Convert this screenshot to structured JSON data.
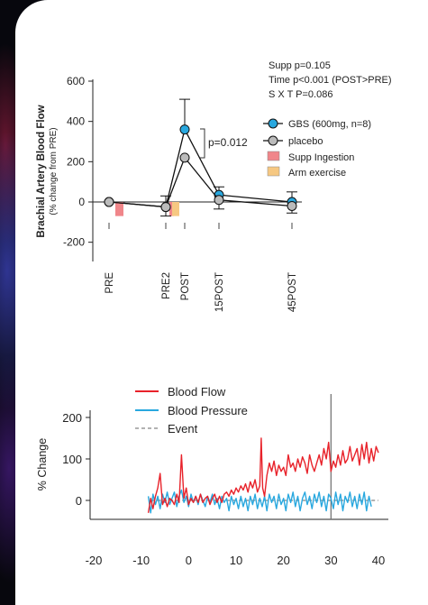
{
  "chart_data": [
    {
      "type": "line",
      "ylabel": "Brachial Artery Blood Flow",
      "ylabel_sub": "(% change from PRE)",
      "categories": [
        "PRE",
        "PRE2",
        "POST",
        "15POST",
        "45POST"
      ],
      "yticks": [
        "600",
        "400",
        "200",
        "0",
        "-200"
      ],
      "ylim": [
        -200,
        600
      ],
      "series": [
        {
          "name": "GBS (600mg, n=8)",
          "color": "#29a8df",
          "values": [
            0,
            -25,
            360,
            35,
            0
          ],
          "err": [
            0,
            55,
            150,
            40,
            50
          ]
        },
        {
          "name": "placebo",
          "color": "#bbbbbb",
          "values": [
            0,
            -25,
            220,
            10,
            -20
          ],
          "err": [
            0,
            45,
            0,
            45,
            35
          ]
        }
      ],
      "bars": [
        {
          "name": "Supp Ingestion",
          "color": "#f0868a",
          "value": -70
        },
        {
          "name": "Arm exercise",
          "color": "#f6c882",
          "value": -70
        }
      ],
      "stats": [
        "Supp p=0.105",
        "Time p<0.001 (POST>PRE)",
        "S X T P=0.086"
      ],
      "annotation": "p=0.012"
    },
    {
      "type": "line",
      "ylabel": "% Change",
      "xticks": [
        "-20",
        "-10",
        "0",
        "10",
        "20",
        "30",
        "40"
      ],
      "yticks": [
        "200",
        "100",
        "0"
      ],
      "xlim": [
        -20,
        40
      ],
      "ylim": [
        -40,
        220
      ],
      "event_x": 30,
      "series": [
        {
          "name": "Blood Flow",
          "color": "#e8222a",
          "points": [
            [
              -8.5,
              -30
            ],
            [
              -8,
              5
            ],
            [
              -7.5,
              -20
            ],
            [
              -7,
              10
            ],
            [
              -6.5,
              30
            ],
            [
              -6,
              65
            ],
            [
              -5.5,
              -10
            ],
            [
              -5,
              5
            ],
            [
              -4.5,
              -15
            ],
            [
              -4,
              5
            ],
            [
              -3.5,
              0
            ],
            [
              -3,
              -10
            ],
            [
              -2.5,
              15
            ],
            [
              -2,
              -5
            ],
            [
              -1.5,
              110
            ],
            [
              -1,
              5
            ],
            [
              -0.5,
              30
            ],
            [
              0,
              -10
            ],
            [
              0.5,
              5
            ],
            [
              1,
              -5
            ],
            [
              1.5,
              10
            ],
            [
              2,
              -5
            ],
            [
              2.5,
              15
            ],
            [
              3,
              -5
            ],
            [
              3.5,
              5
            ],
            [
              4,
              10
            ],
            [
              4.5,
              -10
            ],
            [
              5,
              5
            ],
            [
              5.5,
              15
            ],
            [
              6,
              -5
            ],
            [
              6.5,
              10
            ],
            [
              7,
              -5
            ],
            [
              7.5,
              15
            ],
            [
              8,
              20
            ],
            [
              8.5,
              10
            ],
            [
              9,
              25
            ],
            [
              9.5,
              15
            ],
            [
              10,
              30
            ],
            [
              10.5,
              20
            ],
            [
              11,
              35
            ],
            [
              11.5,
              25
            ],
            [
              12,
              40
            ],
            [
              12.5,
              20
            ],
            [
              13,
              45
            ],
            [
              13.5,
              30
            ],
            [
              14,
              50
            ],
            [
              14.5,
              20
            ],
            [
              15,
              35
            ],
            [
              15.3,
              150
            ],
            [
              15.6,
              30
            ],
            [
              16,
              10
            ],
            [
              16.5,
              60
            ],
            [
              17,
              90
            ],
            [
              17.5,
              70
            ],
            [
              18,
              95
            ],
            [
              18.5,
              60
            ],
            [
              19,
              85
            ],
            [
              19.5,
              70
            ],
            [
              20,
              80
            ],
            [
              20.5,
              60
            ],
            [
              21,
              110
            ],
            [
              21.5,
              80
            ],
            [
              22,
              90
            ],
            [
              22.5,
              70
            ],
            [
              23,
              100
            ],
            [
              23.5,
              80
            ],
            [
              24,
              105
            ],
            [
              24.5,
              90
            ],
            [
              25,
              65
            ],
            [
              25.5,
              110
            ],
            [
              26,
              85
            ],
            [
              26.5,
              70
            ],
            [
              27,
              90
            ],
            [
              27.5,
              110
            ],
            [
              28,
              85
            ],
            [
              28.5,
              125
            ],
            [
              29,
              100
            ],
            [
              29.5,
              140
            ],
            [
              30,
              70
            ],
            [
              30.5,
              95
            ],
            [
              31,
              80
            ],
            [
              31.5,
              110
            ],
            [
              32,
              85
            ],
            [
              32.5,
              120
            ],
            [
              33,
              90
            ],
            [
              33.5,
              100
            ],
            [
              34,
              130
            ],
            [
              34.5,
              95
            ],
            [
              35,
              110
            ],
            [
              35.5,
              125
            ],
            [
              36,
              85
            ],
            [
              36.5,
              135
            ],
            [
              37,
              100
            ],
            [
              37.5,
              140
            ],
            [
              38,
              90
            ],
            [
              38.5,
              125
            ],
            [
              39,
              95
            ],
            [
              39.5,
              130
            ],
            [
              40,
              115
            ]
          ]
        },
        {
          "name": "Blood Pressure",
          "color": "#29a8df",
          "points": [
            [
              -8.5,
              10
            ],
            [
              -8,
              -30
            ],
            [
              -7.5,
              15
            ],
            [
              -7,
              -10
            ],
            [
              -6.5,
              10
            ],
            [
              -6,
              -20
            ],
            [
              -5.5,
              15
            ],
            [
              -5,
              -5
            ],
            [
              -4.5,
              20
            ],
            [
              -4,
              -10
            ],
            [
              -3.5,
              5
            ],
            [
              -3,
              20
            ],
            [
              -2.5,
              -15
            ],
            [
              -2,
              10
            ],
            [
              -1.5,
              25
            ],
            [
              -1,
              -5
            ],
            [
              -0.5,
              10
            ],
            [
              0,
              -15
            ],
            [
              0.5,
              15
            ],
            [
              1,
              -5
            ],
            [
              1.5,
              10
            ],
            [
              2,
              -10
            ],
            [
              2.5,
              15
            ],
            [
              3,
              0
            ],
            [
              3.5,
              -15
            ],
            [
              4,
              10
            ],
            [
              4.5,
              -5
            ],
            [
              5,
              15
            ],
            [
              5.5,
              -10
            ],
            [
              6,
              5
            ],
            [
              6.5,
              -20
            ],
            [
              7,
              10
            ],
            [
              7.5,
              -5
            ],
            [
              8,
              5
            ],
            [
              8.5,
              -25
            ],
            [
              9,
              10
            ],
            [
              9.5,
              -10
            ],
            [
              10,
              5
            ],
            [
              10.5,
              -20
            ],
            [
              11,
              10
            ],
            [
              11.5,
              -15
            ],
            [
              12,
              5
            ],
            [
              12.5,
              -25
            ],
            [
              13,
              10
            ],
            [
              13.5,
              -10
            ],
            [
              14,
              15
            ],
            [
              14.5,
              -20
            ],
            [
              15,
              5
            ],
            [
              15.5,
              -15
            ],
            [
              16,
              10
            ],
            [
              16.5,
              -25
            ],
            [
              17,
              15
            ],
            [
              17.5,
              -5
            ],
            [
              18,
              10
            ],
            [
              18.5,
              -20
            ],
            [
              19,
              15
            ],
            [
              19.5,
              -10
            ],
            [
              20,
              5
            ],
            [
              20.5,
              -25
            ],
            [
              21,
              15
            ],
            [
              21.5,
              -5
            ],
            [
              22,
              20
            ],
            [
              22.5,
              -15
            ],
            [
              23,
              10
            ],
            [
              23.5,
              -25
            ],
            [
              24,
              5
            ],
            [
              24.5,
              20
            ],
            [
              25,
              -10
            ],
            [
              25.5,
              10
            ],
            [
              26,
              -20
            ],
            [
              26.5,
              15
            ],
            [
              27,
              -5
            ],
            [
              27.5,
              20
            ],
            [
              28,
              -15
            ],
            [
              28.5,
              10
            ],
            [
              29,
              -25
            ],
            [
              29.5,
              15
            ],
            [
              30,
              5
            ],
            [
              30.5,
              -20
            ],
            [
              31,
              20
            ],
            [
              31.5,
              -10
            ],
            [
              32,
              15
            ],
            [
              32.5,
              -25
            ],
            [
              33,
              10
            ],
            [
              33.5,
              -5
            ],
            [
              34,
              20
            ],
            [
              34.5,
              -15
            ],
            [
              35,
              10
            ],
            [
              35.5,
              -20
            ],
            [
              36,
              15
            ],
            [
              36.5,
              -10
            ],
            [
              37,
              20
            ],
            [
              37.5,
              -25
            ],
            [
              38,
              10
            ],
            [
              38.5,
              -15
            ]
          ]
        },
        {
          "name": "Event",
          "color": "#666666",
          "dashed": true
        }
      ]
    }
  ]
}
